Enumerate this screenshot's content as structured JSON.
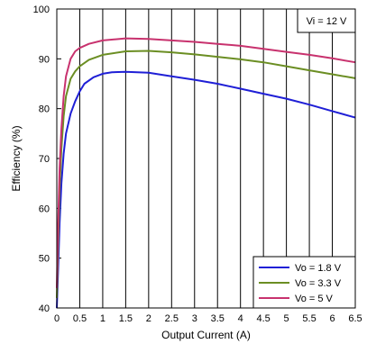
{
  "chart_data": {
    "type": "line",
    "xlabel": "Output Current (A)",
    "ylabel": "Efficiency (%)",
    "xlim": [
      0,
      6.5
    ],
    "ylim": [
      40,
      100
    ],
    "x_ticks": [
      "0",
      "0.5",
      "1",
      "1.5",
      "2",
      "2.5",
      "3",
      "3.5",
      "4",
      "4.5",
      "5",
      "5.5",
      "6",
      "6.5"
    ],
    "y_ticks": [
      "40",
      "50",
      "60",
      "70",
      "80",
      "90",
      "100"
    ],
    "grid": "vertical",
    "annotation": "Vi = 12 V",
    "legend_position": "bottom-right",
    "series": [
      {
        "name": "Vo = 1.8 V",
        "color": "#1f1fd6",
        "x": [
          0.0,
          0.03,
          0.06,
          0.1,
          0.15,
          0.2,
          0.3,
          0.4,
          0.5,
          0.6,
          0.8,
          1.0,
          1.2,
          1.5,
          2.0,
          2.5,
          3.0,
          3.5,
          4.0,
          4.5,
          5.0,
          5.5,
          6.0,
          6.5
        ],
        "y": [
          40,
          48,
          57,
          65,
          71,
          75,
          79,
          81.5,
          83.5,
          85,
          86.3,
          87,
          87.3,
          87.4,
          87.2,
          86.5,
          85.8,
          85,
          84,
          83,
          82,
          80.8,
          79.5,
          78.2
        ]
      },
      {
        "name": "Vo = 3.3 V",
        "color": "#6b8e23",
        "x": [
          0.0,
          0.03,
          0.06,
          0.1,
          0.15,
          0.2,
          0.3,
          0.4,
          0.5,
          0.7,
          1.0,
          1.5,
          2.0,
          2.5,
          3.0,
          3.5,
          4.0,
          4.5,
          5.0,
          5.5,
          6.0,
          6.5
        ],
        "y": [
          42,
          53,
          64,
          72,
          78.5,
          82.5,
          86,
          87.5,
          88.5,
          89.8,
          90.8,
          91.5,
          91.6,
          91.3,
          90.9,
          90.4,
          89.9,
          89.3,
          88.5,
          87.7,
          86.9,
          86.1
        ]
      },
      {
        "name": "Vo = 5 V",
        "color": "#c8326e",
        "x": [
          0.0,
          0.03,
          0.06,
          0.1,
          0.15,
          0.2,
          0.3,
          0.4,
          0.5,
          0.7,
          1.0,
          1.5,
          2.0,
          2.5,
          3.0,
          3.5,
          4.0,
          4.5,
          5.0,
          5.5,
          6.0,
          6.5
        ],
        "y": [
          44,
          57,
          68,
          76,
          82.5,
          86.5,
          90,
          91.5,
          92.2,
          93,
          93.7,
          94.1,
          94,
          93.7,
          93.4,
          93,
          92.6,
          92,
          91.4,
          90.8,
          90.1,
          89.3
        ]
      }
    ]
  }
}
